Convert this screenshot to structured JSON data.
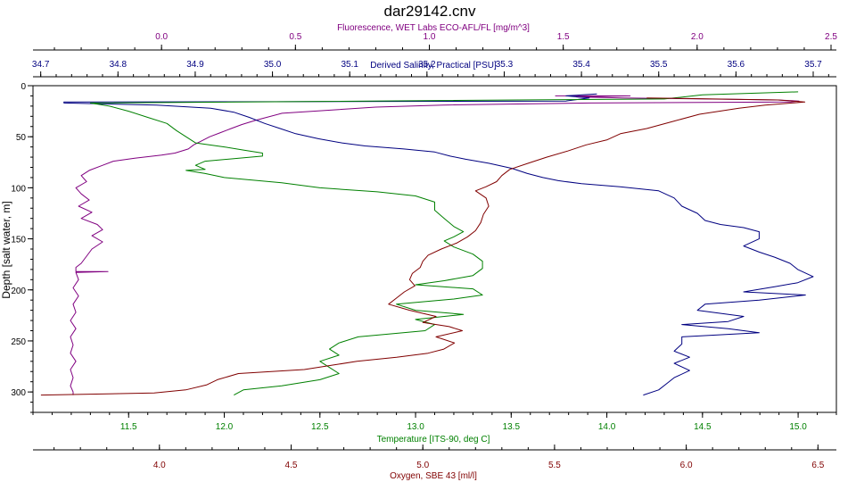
{
  "chart_data": {
    "type": "line",
    "title": "dar29142.cnv",
    "colors": {
      "fluorescence": "#800080",
      "salinity": "#000080",
      "temperature": "#008000",
      "oxygen": "#800000",
      "frame": "#000000"
    },
    "depth_axis": {
      "label": "Depth [salt water, m]",
      "range": [
        0,
        320
      ],
      "ticks": [
        "0",
        "50",
        "100",
        "150",
        "200",
        "250",
        "300"
      ],
      "tick_values": [
        0,
        50,
        100,
        150,
        200,
        250,
        300
      ]
    },
    "fluorescence_axis": {
      "label": "Fluorescence, WET Labs ECO-AFL/FL [mg/m^3]",
      "range": [
        -0.48,
        2.52
      ],
      "ticks": [
        "0.0",
        "0.5",
        "1.0",
        "1.5",
        "2.0",
        "2.5"
      ],
      "tick_values": [
        0,
        0.5,
        1.0,
        1.5,
        2.0,
        2.5
      ]
    },
    "salinity_axis": {
      "label": "Derived Salinity, Practical [PSU]",
      "range": [
        34.69,
        35.73
      ],
      "ticks": [
        "34.7",
        "34.8",
        "34.9",
        "35.0",
        "35.1",
        "35.2",
        "35.3",
        "35.4",
        "35.5",
        "35.6",
        "35.7"
      ],
      "tick_values": [
        34.7,
        34.8,
        34.9,
        35.0,
        35.1,
        35.2,
        35.3,
        35.4,
        35.5,
        35.6,
        35.7
      ]
    },
    "temperature_axis": {
      "label": "Temperature [ITS-90, deg C]",
      "range": [
        11.0,
        15.2
      ],
      "ticks": [
        "11.5",
        "12.0",
        "12.5",
        "13.0",
        "13.5",
        "14.0",
        "14.5",
        "15.0"
      ],
      "tick_values": [
        11.5,
        12.0,
        12.5,
        13.0,
        13.5,
        14.0,
        14.5,
        15.0
      ]
    },
    "oxygen_axis": {
      "label": "Oxygen, SBE 43 [ml/l]",
      "range": [
        3.52,
        6.57
      ],
      "ticks": [
        "4.0",
        "4.5",
        "5.0",
        "5.5",
        "6.0",
        "6.5"
      ],
      "tick_values": [
        4.0,
        4.5,
        5.0,
        5.5,
        6.0,
        6.5
      ]
    },
    "series": [
      {
        "key": "fluorescence",
        "axis": "fluorescence_axis",
        "points": [
          [
            1.47,
            10
          ],
          [
            1.75,
            10
          ],
          [
            1.55,
            11
          ],
          [
            1.72,
            12
          ],
          [
            2.3,
            14
          ],
          [
            2.38,
            15
          ],
          [
            2.35,
            16
          ],
          [
            1.6,
            17
          ],
          [
            1.05,
            19
          ],
          [
            0.8,
            21
          ],
          [
            0.45,
            27
          ],
          [
            0.35,
            34
          ],
          [
            0.3,
            38
          ],
          [
            0.26,
            42
          ],
          [
            0.22,
            46
          ],
          [
            0.18,
            50
          ],
          [
            0.15,
            54
          ],
          [
            0.12,
            58
          ],
          [
            0.1,
            62
          ],
          [
            0.05,
            66
          ],
          [
            0.0,
            68
          ],
          [
            -0.1,
            71
          ],
          [
            -0.18,
            74
          ],
          [
            -0.22,
            78
          ],
          [
            -0.27,
            83
          ],
          [
            -0.3,
            88
          ],
          [
            -0.28,
            94
          ],
          [
            -0.32,
            100
          ],
          [
            -0.3,
            106
          ],
          [
            -0.27,
            112
          ],
          [
            -0.31,
            118
          ],
          [
            -0.26,
            124
          ],
          [
            -0.3,
            130
          ],
          [
            -0.24,
            136
          ],
          [
            -0.22,
            141
          ],
          [
            -0.26,
            147
          ],
          [
            -0.22,
            153
          ],
          [
            -0.26,
            160
          ],
          [
            -0.28,
            167
          ],
          [
            -0.3,
            174
          ],
          [
            -0.32,
            178
          ],
          [
            -0.32,
            182
          ],
          [
            -0.2,
            182
          ],
          [
            -0.32,
            183
          ],
          [
            -0.31,
            190
          ],
          [
            -0.33,
            198
          ],
          [
            -0.31,
            206
          ],
          [
            -0.33,
            214
          ],
          [
            -0.32,
            222
          ],
          [
            -0.34,
            230
          ],
          [
            -0.32,
            238
          ],
          [
            -0.34,
            246
          ],
          [
            -0.33,
            254
          ],
          [
            -0.34,
            262
          ],
          [
            -0.32,
            270
          ],
          [
            -0.34,
            278
          ],
          [
            -0.33,
            286
          ],
          [
            -0.34,
            294
          ],
          [
            -0.33,
            300
          ],
          [
            -0.33,
            303
          ]
        ]
      },
      {
        "key": "salinity",
        "axis": "salinity_axis",
        "points": [
          [
            35.42,
            8
          ],
          [
            35.38,
            10
          ],
          [
            35.41,
            12
          ],
          [
            35.38,
            15
          ],
          [
            34.73,
            16
          ],
          [
            34.73,
            17
          ],
          [
            34.85,
            19
          ],
          [
            34.92,
            22
          ],
          [
            34.95,
            26
          ],
          [
            34.97,
            31
          ],
          [
            34.99,
            37
          ],
          [
            35.01,
            42
          ],
          [
            35.03,
            47
          ],
          [
            35.06,
            52
          ],
          [
            35.09,
            56
          ],
          [
            35.12,
            59
          ],
          [
            35.17,
            62
          ],
          [
            35.21,
            65
          ],
          [
            35.23,
            69
          ],
          [
            35.25,
            72
          ],
          [
            35.28,
            76
          ],
          [
            35.31,
            81
          ],
          [
            35.33,
            86
          ],
          [
            35.35,
            90
          ],
          [
            35.37,
            93
          ],
          [
            35.4,
            96
          ],
          [
            35.45,
            99
          ],
          [
            35.5,
            103
          ],
          [
            35.52,
            110
          ],
          [
            35.53,
            118
          ],
          [
            35.55,
            125
          ],
          [
            35.56,
            132
          ],
          [
            35.58,
            136
          ],
          [
            35.61,
            139
          ],
          [
            35.63,
            143
          ],
          [
            35.63,
            150
          ],
          [
            35.61,
            157
          ],
          [
            35.63,
            163
          ],
          [
            35.65,
            168
          ],
          [
            35.67,
            174
          ],
          [
            35.68,
            180
          ],
          [
            35.7,
            187
          ],
          [
            35.68,
            193
          ],
          [
            35.65,
            197
          ],
          [
            35.61,
            202
          ],
          [
            35.69,
            205
          ],
          [
            35.63,
            210
          ],
          [
            35.56,
            214
          ],
          [
            35.55,
            220
          ],
          [
            35.61,
            226
          ],
          [
            35.59,
            231
          ],
          [
            35.53,
            234
          ],
          [
            35.59,
            238
          ],
          [
            35.63,
            242
          ],
          [
            35.53,
            246
          ],
          [
            35.53,
            253
          ],
          [
            35.52,
            260
          ],
          [
            35.54,
            266
          ],
          [
            35.52,
            272
          ],
          [
            35.54,
            279
          ],
          [
            35.52,
            286
          ],
          [
            35.51,
            292
          ],
          [
            35.5,
            298
          ],
          [
            35.48,
            303
          ]
        ]
      },
      {
        "key": "temperature",
        "axis": "temperature_axis",
        "points": [
          [
            15.0,
            6
          ],
          [
            14.5,
            9
          ],
          [
            14.3,
            13
          ],
          [
            11.3,
            17
          ],
          [
            11.4,
            20
          ],
          [
            11.5,
            25
          ],
          [
            11.6,
            31
          ],
          [
            11.7,
            37
          ],
          [
            11.75,
            44
          ],
          [
            11.8,
            50
          ],
          [
            11.85,
            56
          ],
          [
            12.0,
            60
          ],
          [
            12.1,
            63
          ],
          [
            12.2,
            66
          ],
          [
            12.2,
            69
          ],
          [
            11.9,
            74
          ],
          [
            11.85,
            78
          ],
          [
            11.9,
            82
          ],
          [
            11.8,
            83
          ],
          [
            11.9,
            86
          ],
          [
            12.0,
            90
          ],
          [
            12.3,
            95
          ],
          [
            12.5,
            100
          ],
          [
            12.8,
            104
          ],
          [
            13.0,
            108
          ],
          [
            13.1,
            114
          ],
          [
            13.1,
            122
          ],
          [
            13.15,
            130
          ],
          [
            13.2,
            138
          ],
          [
            13.25,
            143
          ],
          [
            13.2,
            148
          ],
          [
            13.15,
            152
          ],
          [
            13.2,
            158
          ],
          [
            13.3,
            165
          ],
          [
            13.35,
            172
          ],
          [
            13.35,
            179
          ],
          [
            13.3,
            186
          ],
          [
            13.15,
            191
          ],
          [
            13.0,
            195
          ],
          [
            13.3,
            199
          ],
          [
            13.35,
            205
          ],
          [
            13.2,
            209
          ],
          [
            12.9,
            214
          ],
          [
            13.0,
            220
          ],
          [
            13.25,
            224
          ],
          [
            13.0,
            229
          ],
          [
            13.1,
            234
          ],
          [
            13.05,
            240
          ],
          [
            12.7,
            246
          ],
          [
            12.6,
            252
          ],
          [
            12.55,
            258
          ],
          [
            12.6,
            264
          ],
          [
            12.5,
            270
          ],
          [
            12.55,
            276
          ],
          [
            12.6,
            282
          ],
          [
            12.5,
            288
          ],
          [
            12.3,
            294
          ],
          [
            12.1,
            298
          ],
          [
            12.05,
            303
          ]
        ]
      },
      {
        "key": "oxygen",
        "axis": "oxygen_axis",
        "points": [
          [
            5.85,
            12
          ],
          [
            6.35,
            14
          ],
          [
            6.45,
            16
          ],
          [
            6.3,
            19
          ],
          [
            6.2,
            22
          ],
          [
            6.05,
            28
          ],
          [
            5.95,
            35
          ],
          [
            5.85,
            42
          ],
          [
            5.75,
            47
          ],
          [
            5.7,
            53
          ],
          [
            5.62,
            58
          ],
          [
            5.55,
            64
          ],
          [
            5.47,
            70
          ],
          [
            5.4,
            76
          ],
          [
            5.33,
            82
          ],
          [
            5.3,
            88
          ],
          [
            5.28,
            94
          ],
          [
            5.24,
            99
          ],
          [
            5.2,
            103
          ],
          [
            5.24,
            110
          ],
          [
            5.25,
            118
          ],
          [
            5.23,
            126
          ],
          [
            5.22,
            134
          ],
          [
            5.2,
            142
          ],
          [
            5.17,
            148
          ],
          [
            5.13,
            154
          ],
          [
            5.07,
            160
          ],
          [
            5.02,
            166
          ],
          [
            5.0,
            172
          ],
          [
            4.99,
            178
          ],
          [
            4.96,
            184
          ],
          [
            4.95,
            190
          ],
          [
            4.97,
            196
          ],
          [
            4.93,
            202
          ],
          [
            4.9,
            208
          ],
          [
            4.87,
            214
          ],
          [
            4.95,
            220
          ],
          [
            5.05,
            226
          ],
          [
            5.0,
            232
          ],
          [
            5.1,
            236
          ],
          [
            5.15,
            240
          ],
          [
            5.05,
            246
          ],
          [
            5.12,
            252
          ],
          [
            5.08,
            258
          ],
          [
            5.02,
            262
          ],
          [
            4.9,
            266
          ],
          [
            4.75,
            270
          ],
          [
            4.65,
            274
          ],
          [
            4.55,
            278
          ],
          [
            4.3,
            282
          ],
          [
            4.22,
            288
          ],
          [
            4.18,
            293
          ],
          [
            4.1,
            298
          ],
          [
            3.98,
            301
          ],
          [
            3.55,
            303
          ]
        ]
      }
    ]
  }
}
